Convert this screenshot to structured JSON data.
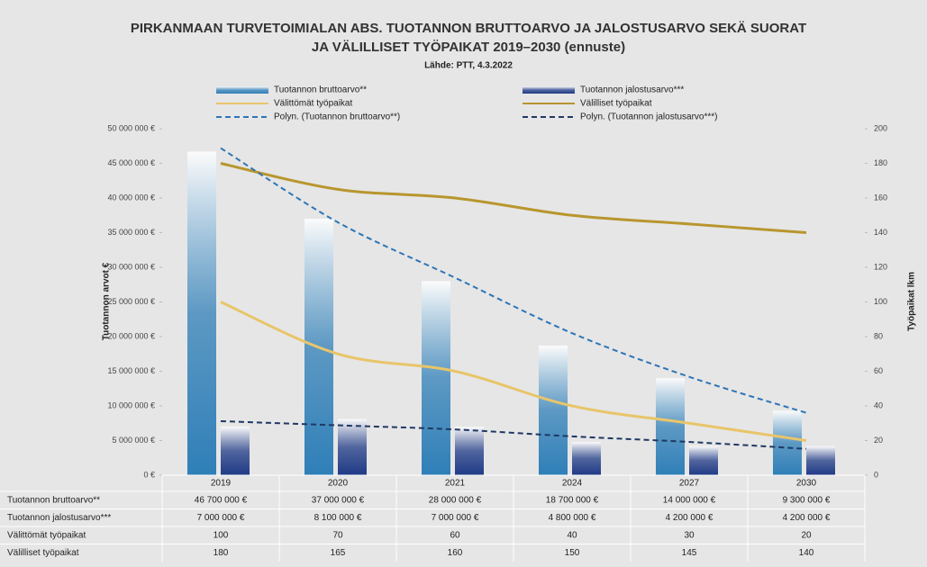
{
  "chart_data": {
    "type": "bar",
    "title": [
      "PIRKANMAAN TURVETOIMIALAN ABS. TUOTANNON BRUTTOARVO JA JALOSTUSARVO SEKÄ SUORAT",
      "JA VÄLILLISET TYÖPAIKAT 2019–2030 (ennuste)"
    ],
    "subtitle": "Lähde: PTT, 4.3.2022",
    "ylabel": "Tuotannon arvot €",
    "y2label": "Työpaikat lkm",
    "categories": [
      "2019",
      "2020",
      "2021",
      "2024",
      "2027",
      "2030"
    ],
    "series": [
      {
        "name": "Tuotannon bruttoarvo**",
        "type": "bar",
        "color": "#2f7fb8",
        "axis": "y",
        "values": [
          46700000,
          37000000,
          28000000,
          18700000,
          14000000,
          9300000
        ],
        "value_labels": [
          "46 700 000 €",
          "37 000 000 €",
          "28 000 000 €",
          "18 700 000 €",
          "14 000 000 €",
          "9 300 000 €"
        ]
      },
      {
        "name": "Tuotannon jalostusarvo***",
        "type": "bar",
        "color": "#1f3a86",
        "axis": "y",
        "values": [
          7000000,
          8100000,
          7000000,
          4800000,
          4200000,
          4200000
        ],
        "value_labels": [
          "7 000 000 €",
          "8 100 000 €",
          "7 000 000 €",
          "4 800 000 €",
          "4 200 000 €",
          "4 200 000 €"
        ]
      },
      {
        "name": "Välittömät työpaikat",
        "type": "line",
        "color": "#e8c56a",
        "axis": "y2",
        "values": [
          100,
          70,
          60,
          40,
          30,
          20
        ]
      },
      {
        "name": "Välilliset työpaikat",
        "type": "line",
        "color": "#b8962e",
        "axis": "y2",
        "values": [
          180,
          165,
          160,
          150,
          145,
          140
        ]
      },
      {
        "name": "Polyn. (Tuotannon bruttoarvo**)",
        "type": "line",
        "dashed": true,
        "color": "#2e75b6",
        "axis": "y",
        "values": [
          47200000,
          36500000,
          28500000,
          20500000,
          14200000,
          9000000
        ]
      },
      {
        "name": "Polyn. (Tuotannon jalostusarvo***)",
        "type": "line",
        "dashed": true,
        "color": "#1f3864",
        "axis": "y",
        "values": [
          7800000,
          7200000,
          6600000,
          5600000,
          4800000,
          3800000
        ]
      }
    ],
    "ylim": [
      0,
      50000000
    ],
    "yticks": [
      {
        "value": 0,
        "label": "0 €"
      },
      {
        "value": 5000000,
        "label": "5 000 000 €"
      },
      {
        "value": 10000000,
        "label": "10 000 000 €"
      },
      {
        "value": 15000000,
        "label": "15 000 000 €"
      },
      {
        "value": 20000000,
        "label": "20 000 000 €"
      },
      {
        "value": 25000000,
        "label": "25 000 000 €"
      },
      {
        "value": 30000000,
        "label": "30 000 000 €"
      },
      {
        "value": 35000000,
        "label": "35 000 000 €"
      },
      {
        "value": 40000000,
        "label": "40 000 000 €"
      },
      {
        "value": 45000000,
        "label": "45 000 000 €"
      },
      {
        "value": 50000000,
        "label": "50 000 000 €"
      }
    ],
    "y2lim": [
      0,
      200
    ],
    "y2ticks": [
      0,
      20,
      40,
      60,
      80,
      100,
      120,
      140,
      160,
      180,
      200
    ],
    "data_table": true
  }
}
